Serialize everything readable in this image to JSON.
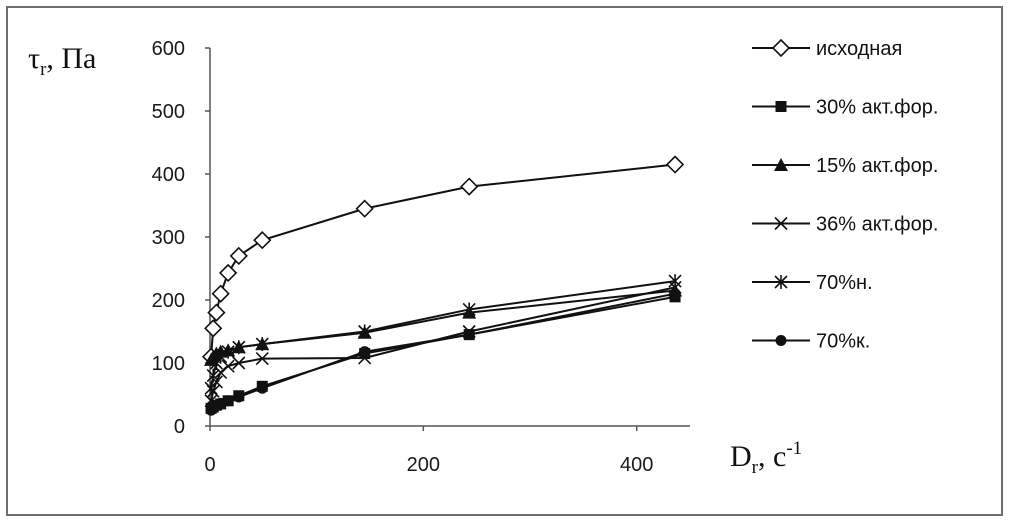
{
  "chart_data": {
    "type": "line",
    "title": "",
    "ylabel": {
      "main": "τ",
      "sub": "r",
      "rest": ", Па"
    },
    "xlabel": {
      "main": "D",
      "sub": "r",
      "rest": ", с",
      "sup": "-1"
    },
    "xlim": [
      0,
      450
    ],
    "ylim": [
      0,
      600
    ],
    "xticks": [
      0,
      200,
      400
    ],
    "yticks": [
      0,
      100,
      200,
      300,
      400,
      500,
      600
    ],
    "grid": false,
    "legend_position": "right",
    "series": [
      {
        "name": "исходная",
        "marker": "diamond",
        "x": [
          1,
          3,
          6,
          10,
          17,
          27,
          49,
          145,
          243,
          436
        ],
        "y": [
          110,
          155,
          180,
          210,
          243,
          270,
          295,
          345,
          380,
          415
        ]
      },
      {
        "name": "30% акт.фор.",
        "marker": "square",
        "x": [
          1,
          3,
          6,
          10,
          17,
          27,
          49,
          145,
          243,
          436
        ],
        "y": [
          28,
          30,
          33,
          35,
          40,
          48,
          63,
          115,
          145,
          205
        ]
      },
      {
        "name": "15% акт.фор.",
        "marker": "triangle",
        "x": [
          1,
          3,
          6,
          10,
          17,
          27,
          49,
          145,
          243,
          436
        ],
        "y": [
          105,
          110,
          115,
          118,
          120,
          125,
          130,
          148,
          180,
          215
        ]
      },
      {
        "name": "36% акт.фор.",
        "marker": "x",
        "x": [
          1,
          3,
          6,
          10,
          17,
          27,
          49,
          145,
          243,
          436
        ],
        "y": [
          40,
          55,
          70,
          85,
          95,
          100,
          107,
          108,
          150,
          220
        ]
      },
      {
        "name": "70%н.",
        "marker": "asterisk",
        "x": [
          1,
          3,
          6,
          10,
          17,
          27,
          49,
          145,
          243,
          436
        ],
        "y": [
          60,
          80,
          100,
          110,
          118,
          125,
          130,
          150,
          185,
          230
        ]
      },
      {
        "name": "70%к.",
        "marker": "circle",
        "x": [
          1,
          3,
          6,
          10,
          17,
          27,
          49,
          145,
          243,
          436
        ],
        "y": [
          25,
          28,
          32,
          36,
          40,
          46,
          60,
          118,
          145,
          210
        ]
      }
    ]
  }
}
